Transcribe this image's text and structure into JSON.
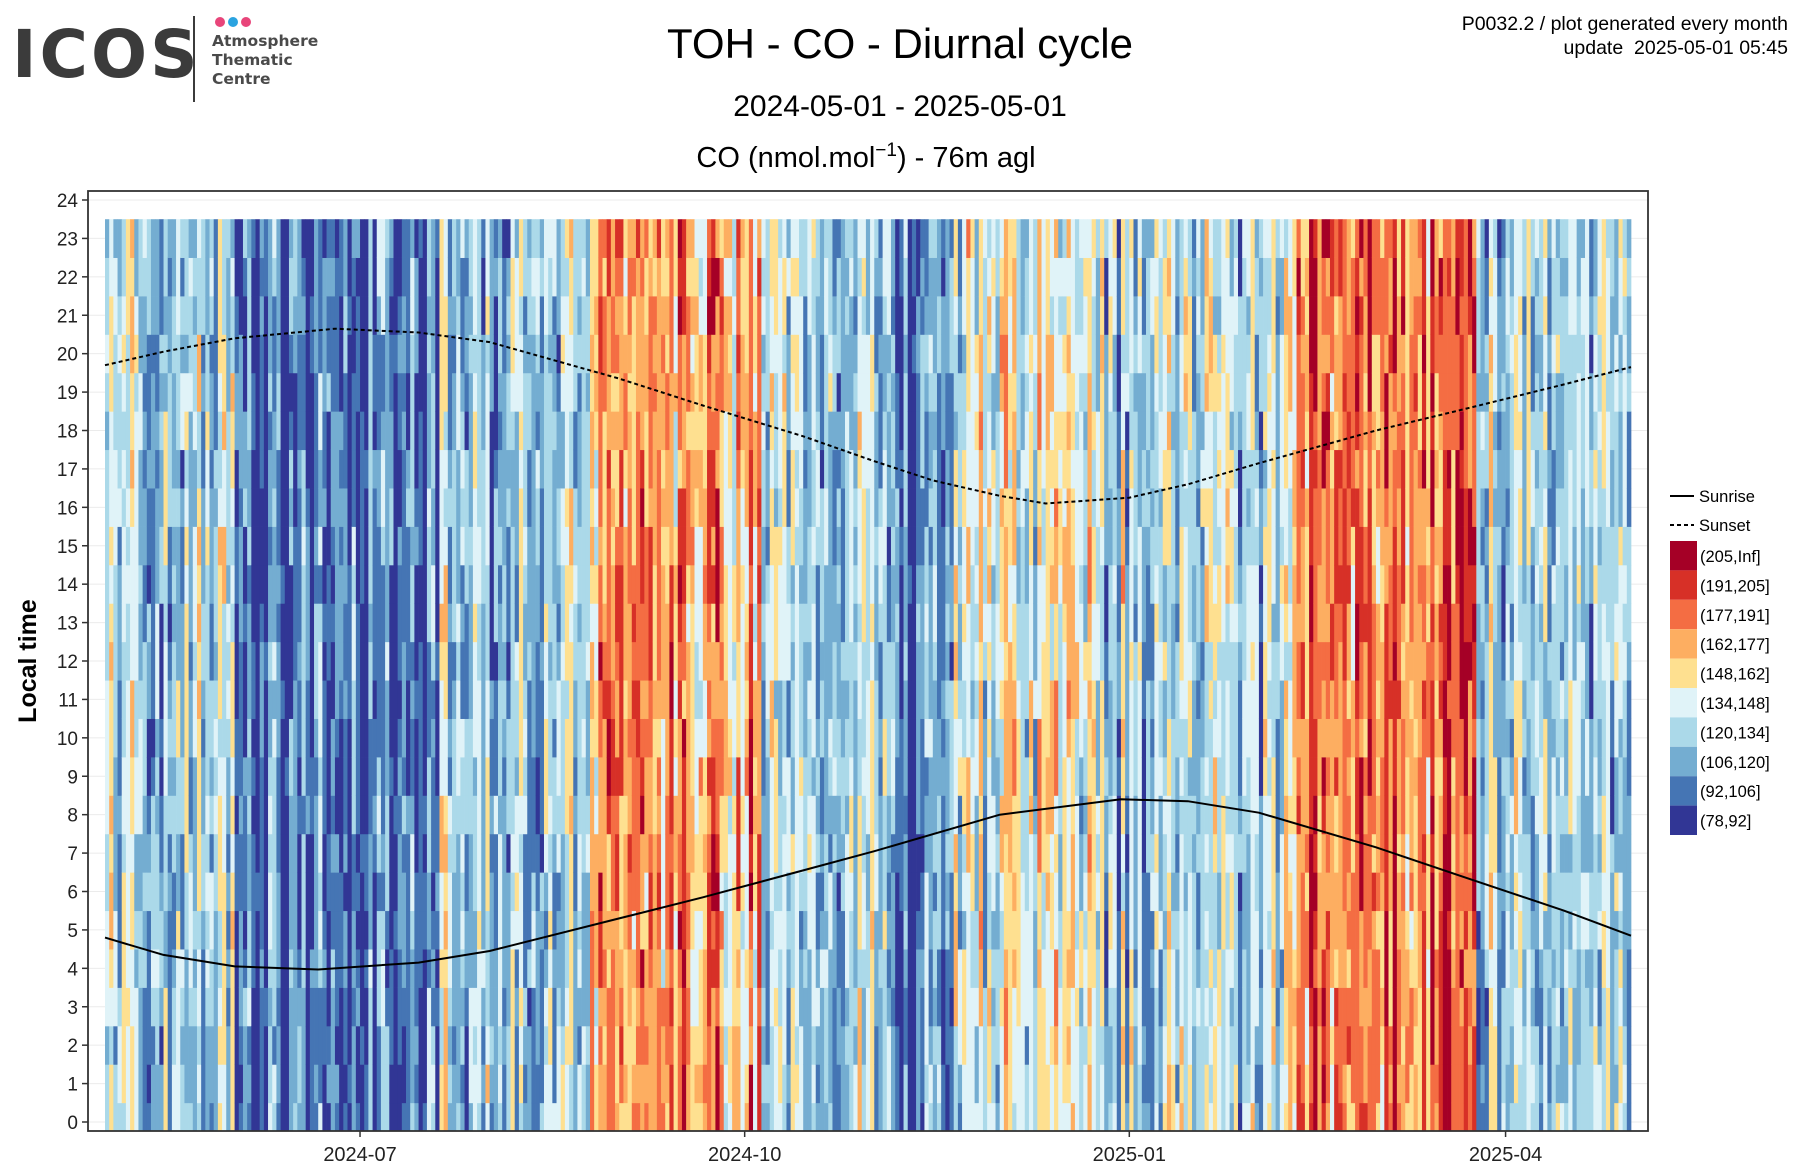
{
  "header": {
    "logo_text": "ICOS",
    "logo_subtitle": [
      "Atmosphere",
      "Thematic",
      "Centre"
    ],
    "logo_dot_colors": [
      "#e8457a",
      "#2aa3e0",
      "#e8457a"
    ],
    "title": "TOH - CO - Diurnal cycle",
    "date_range": "2024-05-01 - 2025-05-01",
    "meta_line1": "P0032.2 / plot generated every month",
    "meta_line2": "update  2025-05-01 05:45"
  },
  "chart_data": {
    "type": "heatmap",
    "plot_title_parts": [
      "CO (nmol.mol",
      "−1",
      ") - 76m agl"
    ],
    "ylabel": "Local time",
    "xlabel": "",
    "x_range": [
      "2024-05-01",
      "2025-05-01"
    ],
    "x_ticks": [
      "2024-07",
      "2024-10",
      "2025-01",
      "2025-04"
    ],
    "ylim": [
      0,
      24
    ],
    "y_ticks": [
      0,
      1,
      2,
      3,
      4,
      5,
      6,
      7,
      8,
      9,
      10,
      11,
      12,
      13,
      14,
      15,
      16,
      17,
      18,
      19,
      20,
      21,
      22,
      23,
      24
    ],
    "grid": true,
    "legend_position": "right",
    "legend_lines": [
      {
        "name": "Sunrise",
        "style": "solid"
      },
      {
        "name": "Sunset",
        "style": "dashed"
      }
    ],
    "legend_bins": [
      {
        "label": "(205,Inf]",
        "color": "#a50026"
      },
      {
        "label": "(191,205]",
        "color": "#d73027"
      },
      {
        "label": "(177,191]",
        "color": "#f46d43"
      },
      {
        "label": "(162,177]",
        "color": "#fdae61"
      },
      {
        "label": "(148,162]",
        "color": "#fee090"
      },
      {
        "label": "(134,148]",
        "color": "#e0f3f8"
      },
      {
        "label": "(120,134]",
        "color": "#abd9e9"
      },
      {
        "label": "(106,120]",
        "color": "#74add1"
      },
      {
        "label": "(92,106]",
        "color": "#4575b4"
      },
      {
        "label": "(78,92]",
        "color": "#313695"
      }
    ],
    "sunrise_curve": [
      {
        "date": "2024-05-01",
        "hour": 4.8
      },
      {
        "date": "2024-05-15",
        "hour": 4.35
      },
      {
        "date": "2024-06-01",
        "hour": 4.05
      },
      {
        "date": "2024-06-21",
        "hour": 3.97
      },
      {
        "date": "2024-07-15",
        "hour": 4.15
      },
      {
        "date": "2024-08-01",
        "hour": 4.45
      },
      {
        "date": "2024-09-01",
        "hour": 5.3
      },
      {
        "date": "2024-09-21",
        "hour": 5.85
      },
      {
        "date": "2024-10-15",
        "hour": 6.55
      },
      {
        "date": "2024-11-01",
        "hour": 7.05
      },
      {
        "date": "2024-12-01",
        "hour": 8.0
      },
      {
        "date": "2024-12-30",
        "hour": 8.4
      },
      {
        "date": "2025-01-15",
        "hour": 8.35
      },
      {
        "date": "2025-02-01",
        "hour": 8.05
      },
      {
        "date": "2025-03-01",
        "hour": 7.15
      },
      {
        "date": "2025-03-20",
        "hour": 6.45
      },
      {
        "date": "2025-04-15",
        "hour": 5.5
      },
      {
        "date": "2025-05-01",
        "hour": 4.85
      }
    ],
    "sunset_curve": [
      {
        "date": "2024-05-01",
        "hour": 19.7
      },
      {
        "date": "2024-05-15",
        "hour": 20.05
      },
      {
        "date": "2024-06-01",
        "hour": 20.4
      },
      {
        "date": "2024-06-25",
        "hour": 20.65
      },
      {
        "date": "2024-07-15",
        "hour": 20.55
      },
      {
        "date": "2024-08-01",
        "hour": 20.3
      },
      {
        "date": "2024-09-01",
        "hour": 19.35
      },
      {
        "date": "2024-09-21",
        "hour": 18.65
      },
      {
        "date": "2024-10-15",
        "hour": 17.85
      },
      {
        "date": "2024-11-01",
        "hour": 17.2
      },
      {
        "date": "2024-11-15",
        "hour": 16.7
      },
      {
        "date": "2024-12-01",
        "hour": 16.3
      },
      {
        "date": "2024-12-12",
        "hour": 16.1
      },
      {
        "date": "2025-01-01",
        "hour": 16.25
      },
      {
        "date": "2025-01-15",
        "hour": 16.6
      },
      {
        "date": "2025-02-01",
        "hour": 17.15
      },
      {
        "date": "2025-03-01",
        "hour": 18.0
      },
      {
        "date": "2025-03-20",
        "hour": 18.5
      },
      {
        "date": "2025-04-15",
        "hour": 19.2
      },
      {
        "date": "2025-05-01",
        "hour": 19.65
      }
    ],
    "co_regimes": [
      {
        "from": "2024-05-01",
        "to": "2024-06-01",
        "mean_bin": 6
      },
      {
        "from": "2024-06-01",
        "to": "2024-07-20",
        "mean_bin": 8
      },
      {
        "from": "2024-07-20",
        "to": "2024-08-25",
        "mean_bin": 6
      },
      {
        "from": "2024-08-25",
        "to": "2024-10-05",
        "mean_bin": 3
      },
      {
        "from": "2024-10-05",
        "to": "2024-11-05",
        "mean_bin": 6
      },
      {
        "from": "2024-11-05",
        "to": "2024-11-20",
        "mean_bin": 8
      },
      {
        "from": "2024-11-20",
        "to": "2024-12-25",
        "mean_bin": 5
      },
      {
        "from": "2024-12-25",
        "to": "2025-02-10",
        "mean_bin": 6
      },
      {
        "from": "2025-02-10",
        "to": "2025-03-25",
        "mean_bin": 2
      },
      {
        "from": "2025-03-25",
        "to": "2025-05-01",
        "mean_bin": 6
      }
    ]
  }
}
